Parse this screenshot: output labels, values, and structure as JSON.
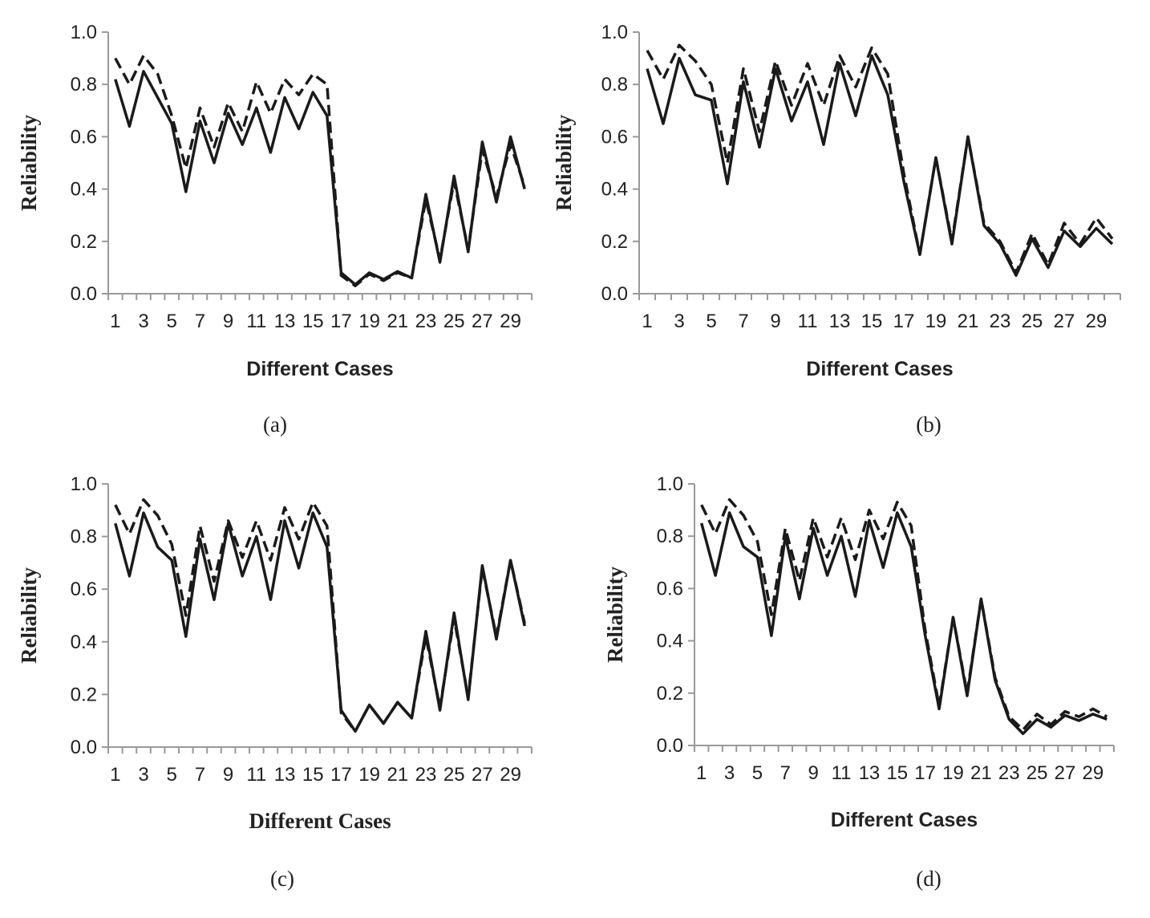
{
  "chart_data": [
    {
      "type": "line",
      "caption": "(a)",
      "xlabel": "Different Cases",
      "ylabel": "Reliability",
      "ylim": [
        0,
        1.0
      ],
      "yticks": [
        "0.0",
        "0.2",
        "0.4",
        "0.6",
        "0.8",
        "1.0"
      ],
      "xticks": [
        "1",
        "3",
        "5",
        "7",
        "9",
        "11",
        "13",
        "15",
        "17",
        "19",
        "21",
        "23",
        "25",
        "27",
        "29"
      ],
      "x": [
        1,
        2,
        3,
        4,
        5,
        6,
        7,
        8,
        9,
        10,
        11,
        12,
        13,
        14,
        15,
        16,
        17,
        18,
        19,
        20,
        21,
        22,
        23,
        24,
        25,
        26,
        27,
        28,
        29,
        30
      ],
      "series": [
        {
          "style": "solid",
          "values": [
            0.82,
            0.64,
            0.85,
            0.75,
            0.65,
            0.39,
            0.66,
            0.5,
            0.69,
            0.57,
            0.71,
            0.54,
            0.75,
            0.63,
            0.77,
            0.68,
            0.08,
            0.035,
            0.08,
            0.055,
            0.085,
            0.06,
            0.38,
            0.12,
            0.45,
            0.16,
            0.58,
            0.35,
            0.6,
            0.4
          ]
        },
        {
          "style": "dashed",
          "values": [
            0.9,
            0.8,
            0.91,
            0.84,
            0.68,
            0.48,
            0.71,
            0.56,
            0.73,
            0.62,
            0.81,
            0.69,
            0.82,
            0.76,
            0.84,
            0.8,
            0.07,
            0.03,
            0.075,
            0.05,
            0.08,
            0.06,
            0.36,
            0.13,
            0.43,
            0.17,
            0.55,
            0.37,
            0.57,
            0.41
          ]
        }
      ]
    },
    {
      "type": "line",
      "caption": "(b)",
      "xlabel": "Different Cases",
      "ylabel": "Reliability",
      "ylim": [
        0,
        1.0
      ],
      "yticks": [
        "0.0",
        "0.2",
        "0.4",
        "0.6",
        "0.8",
        "1.0"
      ],
      "xticks": [
        "1",
        "3",
        "5",
        "7",
        "9",
        "11",
        "13",
        "15",
        "17",
        "19",
        "21",
        "23",
        "25",
        "27",
        "29"
      ],
      "x": [
        1,
        2,
        3,
        4,
        5,
        6,
        7,
        8,
        9,
        10,
        11,
        12,
        13,
        14,
        15,
        16,
        17,
        18,
        19,
        20,
        21,
        22,
        23,
        24,
        25,
        26,
        27,
        28,
        29,
        30
      ],
      "series": [
        {
          "style": "solid",
          "values": [
            0.86,
            0.65,
            0.9,
            0.76,
            0.74,
            0.42,
            0.81,
            0.56,
            0.86,
            0.66,
            0.81,
            0.57,
            0.88,
            0.68,
            0.91,
            0.76,
            0.43,
            0.15,
            0.52,
            0.19,
            0.6,
            0.26,
            0.19,
            0.07,
            0.21,
            0.1,
            0.24,
            0.18,
            0.25,
            0.19
          ]
        },
        {
          "style": "dashed",
          "values": [
            0.93,
            0.82,
            0.95,
            0.89,
            0.8,
            0.5,
            0.86,
            0.62,
            0.89,
            0.72,
            0.88,
            0.72,
            0.91,
            0.79,
            0.94,
            0.84,
            0.46,
            0.15,
            0.52,
            0.2,
            0.6,
            0.27,
            0.2,
            0.08,
            0.23,
            0.11,
            0.27,
            0.19,
            0.29,
            0.21
          ]
        }
      ]
    },
    {
      "type": "line",
      "caption": "(c)",
      "xlabel": "Different Cases",
      "ylabel": "Reliability",
      "ylim": [
        0,
        1.0
      ],
      "yticks": [
        "0.0",
        "0.2",
        "0.4",
        "0.6",
        "0.8",
        "1.0"
      ],
      "xticks": [
        "1",
        "3",
        "5",
        "7",
        "9",
        "11",
        "13",
        "15",
        "17",
        "19",
        "21",
        "23",
        "25",
        "27",
        "29"
      ],
      "x": [
        1,
        2,
        3,
        4,
        5,
        6,
        7,
        8,
        9,
        10,
        11,
        12,
        13,
        14,
        15,
        16,
        17,
        18,
        19,
        20,
        21,
        22,
        23,
        24,
        25,
        26,
        27,
        28,
        29,
        30
      ],
      "series": [
        {
          "style": "solid",
          "values": [
            0.85,
            0.65,
            0.89,
            0.76,
            0.71,
            0.42,
            0.79,
            0.56,
            0.85,
            0.65,
            0.8,
            0.56,
            0.86,
            0.68,
            0.89,
            0.76,
            0.14,
            0.06,
            0.16,
            0.09,
            0.17,
            0.11,
            0.44,
            0.14,
            0.51,
            0.18,
            0.69,
            0.41,
            0.71,
            0.46
          ]
        },
        {
          "style": "dashed",
          "values": [
            0.92,
            0.81,
            0.94,
            0.88,
            0.77,
            0.5,
            0.84,
            0.63,
            0.86,
            0.72,
            0.86,
            0.71,
            0.91,
            0.79,
            0.93,
            0.84,
            0.13,
            0.06,
            0.16,
            0.09,
            0.17,
            0.11,
            0.42,
            0.15,
            0.49,
            0.19,
            0.68,
            0.42,
            0.71,
            0.47
          ]
        }
      ]
    },
    {
      "type": "line",
      "caption": "(d)",
      "xlabel": "Different Cases",
      "ylabel": "Reliability",
      "ylim": [
        0,
        1.0
      ],
      "yticks": [
        "0.0",
        "0.2",
        "0.4",
        "0.6",
        "0.8",
        "1.0"
      ],
      "xticks": [
        "1",
        "3",
        "5",
        "7",
        "9",
        "11",
        "13",
        "15",
        "17",
        "19",
        "21",
        "23",
        "25",
        "27",
        "29"
      ],
      "x": [
        1,
        2,
        3,
        4,
        5,
        6,
        7,
        8,
        9,
        10,
        11,
        12,
        13,
        14,
        15,
        16,
        17,
        18,
        19,
        20,
        21,
        22,
        23,
        24,
        25,
        26,
        27,
        28,
        29,
        30
      ],
      "series": [
        {
          "style": "solid",
          "values": [
            0.85,
            0.65,
            0.89,
            0.76,
            0.72,
            0.42,
            0.8,
            0.56,
            0.83,
            0.65,
            0.8,
            0.57,
            0.86,
            0.68,
            0.89,
            0.76,
            0.42,
            0.14,
            0.49,
            0.19,
            0.56,
            0.25,
            0.1,
            0.045,
            0.1,
            0.07,
            0.115,
            0.095,
            0.12,
            0.1
          ]
        },
        {
          "style": "dashed",
          "values": [
            0.92,
            0.81,
            0.94,
            0.88,
            0.78,
            0.5,
            0.83,
            0.63,
            0.87,
            0.72,
            0.87,
            0.71,
            0.9,
            0.79,
            0.93,
            0.84,
            0.44,
            0.15,
            0.49,
            0.2,
            0.56,
            0.26,
            0.11,
            0.06,
            0.12,
            0.08,
            0.13,
            0.11,
            0.14,
            0.11
          ]
        }
      ]
    }
  ]
}
